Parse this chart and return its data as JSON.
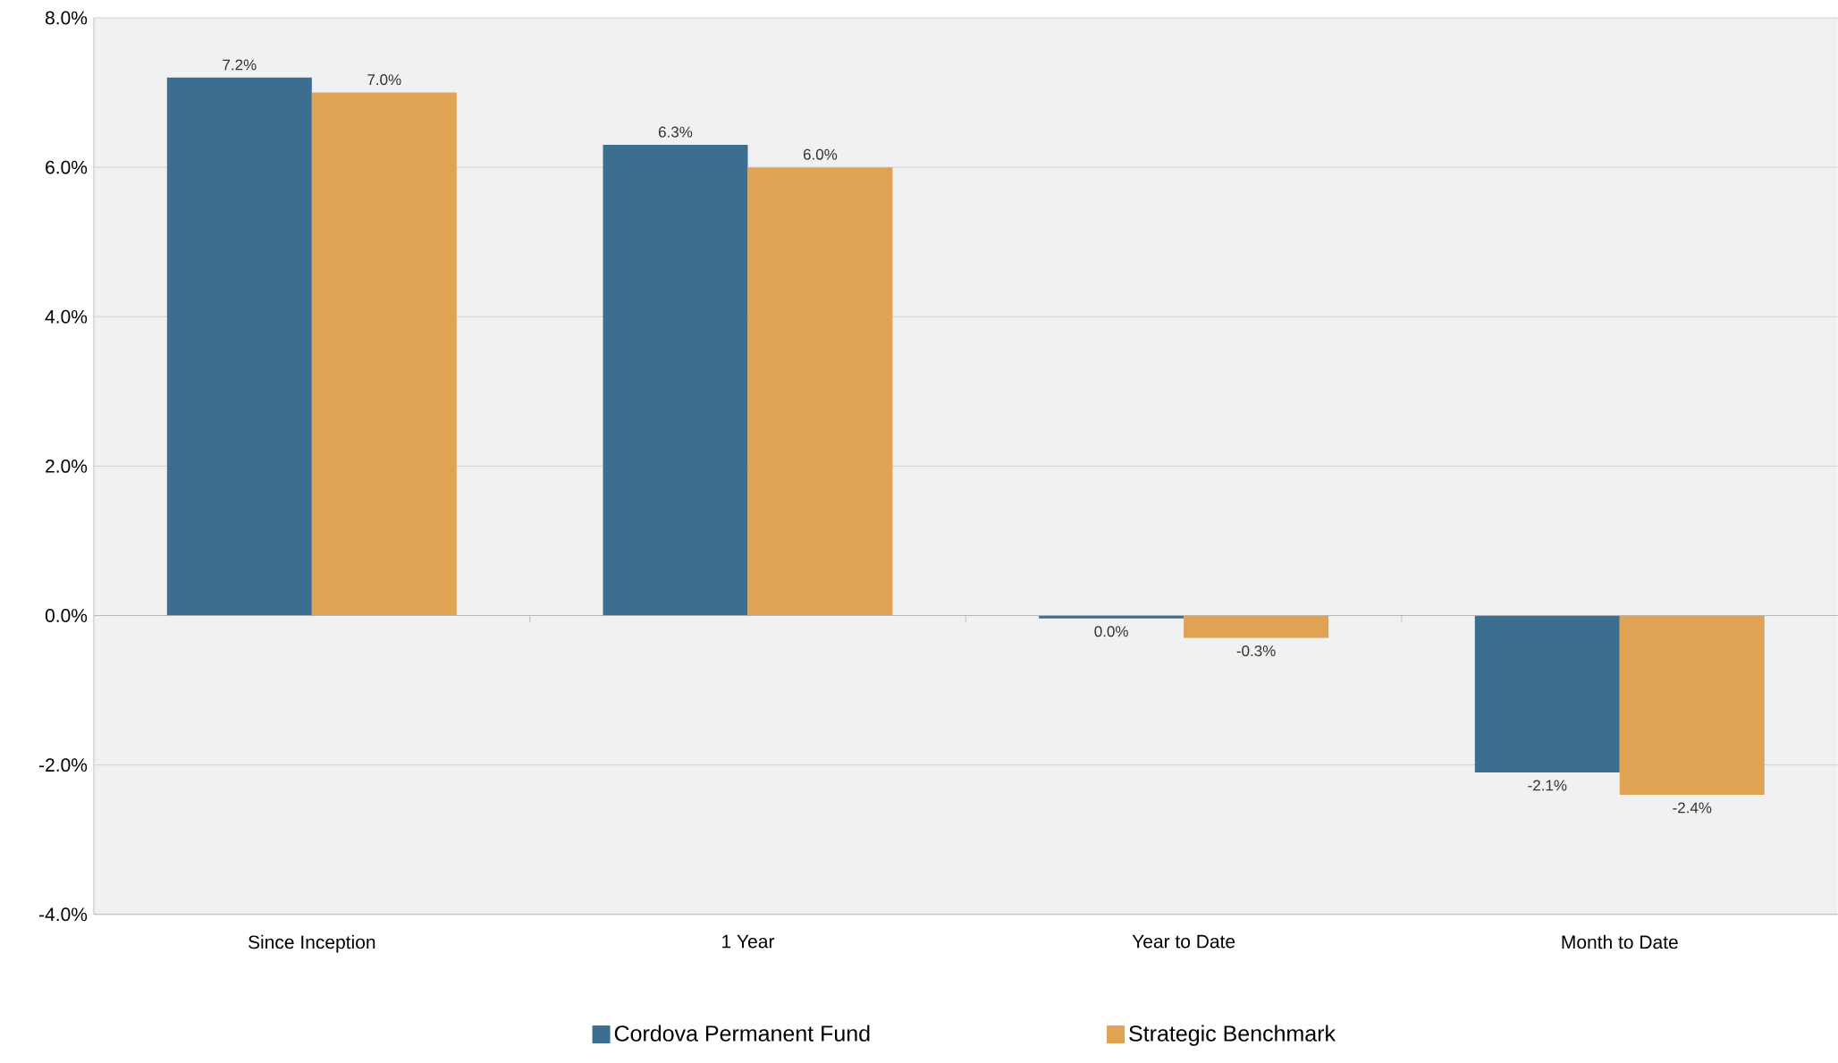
{
  "chart_data": {
    "type": "bar",
    "categories": [
      "Since Inception",
      "1 Year",
      "Year to Date",
      "Month to Date"
    ],
    "series": [
      {
        "name": "Cordova Permanent Fund",
        "color": "#3b6e8f",
        "values": [
          7.2,
          6.3,
          -0.04,
          -2.1
        ],
        "value_labels": [
          "7.2%",
          "6.3%",
          "0.0%",
          "-2.1%"
        ]
      },
      {
        "name": "Strategic Benchmark",
        "color": "#e0a354",
        "values": [
          7.0,
          6.0,
          -0.3,
          -2.4
        ],
        "value_labels": [
          "7.0%",
          "6.0%",
          "-0.3%",
          "-2.4%"
        ]
      }
    ],
    "ylim": [
      -4,
      8
    ],
    "yticks": [
      {
        "value": -4,
        "label": "-4.0%"
      },
      {
        "value": -2,
        "label": "-2.0%"
      },
      {
        "value": 0,
        "label": "0.0%"
      },
      {
        "value": 2,
        "label": "2.0%"
      },
      {
        "value": 4,
        "label": "4.0%"
      },
      {
        "value": 6,
        "label": "6.0%"
      },
      {
        "value": 8,
        "label": "8.0%"
      }
    ],
    "grid": "y",
    "legend": "bottom"
  }
}
